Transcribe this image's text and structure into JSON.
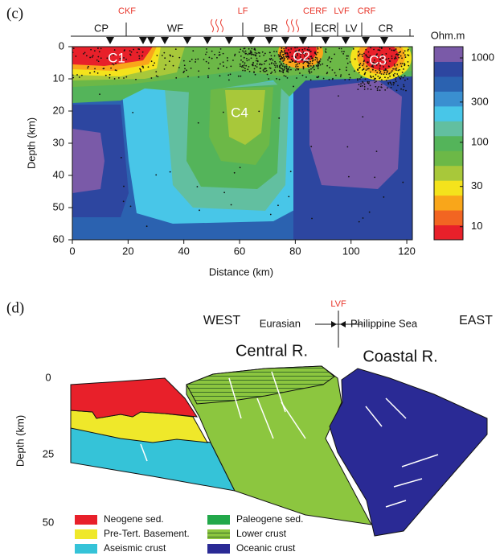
{
  "chart_data": {
    "type": "heatmap",
    "panel_label": "(c)",
    "xlabel": "Distance (km)",
    "ylabel": "Depth (km)",
    "xlim": [
      0,
      122
    ],
    "xticks": [
      0,
      20,
      40,
      60,
      80,
      100,
      120
    ],
    "ylim": [
      0,
      60
    ],
    "yticks": [
      0,
      10,
      20,
      30,
      40,
      50,
      60
    ],
    "colorbar": {
      "label": "Ohm.m",
      "log": true,
      "clim": [
        7,
        1360
      ],
      "ticks": [
        10,
        30,
        100,
        300,
        1000
      ],
      "colors": [
        "#e8202a",
        "#f26522",
        "#f9a61a",
        "#f4e31c",
        "#a8c83a",
        "#6cb847",
        "#54b45a",
        "#62bfa0",
        "#48c6e8",
        "#3a8fd0",
        "#2b62b0",
        "#2d46a0",
        "#7a5aa8"
      ]
    },
    "zones": [
      "CP",
      "WF",
      "BR",
      "ECR",
      "LV",
      "CR"
    ],
    "faults": [
      "CKF",
      "LF",
      "CERF",
      "LVF",
      "CRF"
    ],
    "anomalies": [
      "C1",
      "C2",
      "C3",
      "C4"
    ]
  },
  "diagram": {
    "panel_label": "(d)",
    "west": "WEST",
    "east": "EAST",
    "eurasian": "Eurasian",
    "philippine": "Philippine Sea",
    "fault": "LVF",
    "central": "Central R.",
    "coastal": "Coastal R.",
    "ylabel": "Depth (km)",
    "depth_ticks": [
      0,
      25,
      50
    ],
    "legend": [
      "Neogene sed.",
      "Pre-Tert. Basement.",
      "Aseismic crust",
      "Paleogene sed.",
      "Lower crust",
      "Oceanic crust"
    ]
  }
}
